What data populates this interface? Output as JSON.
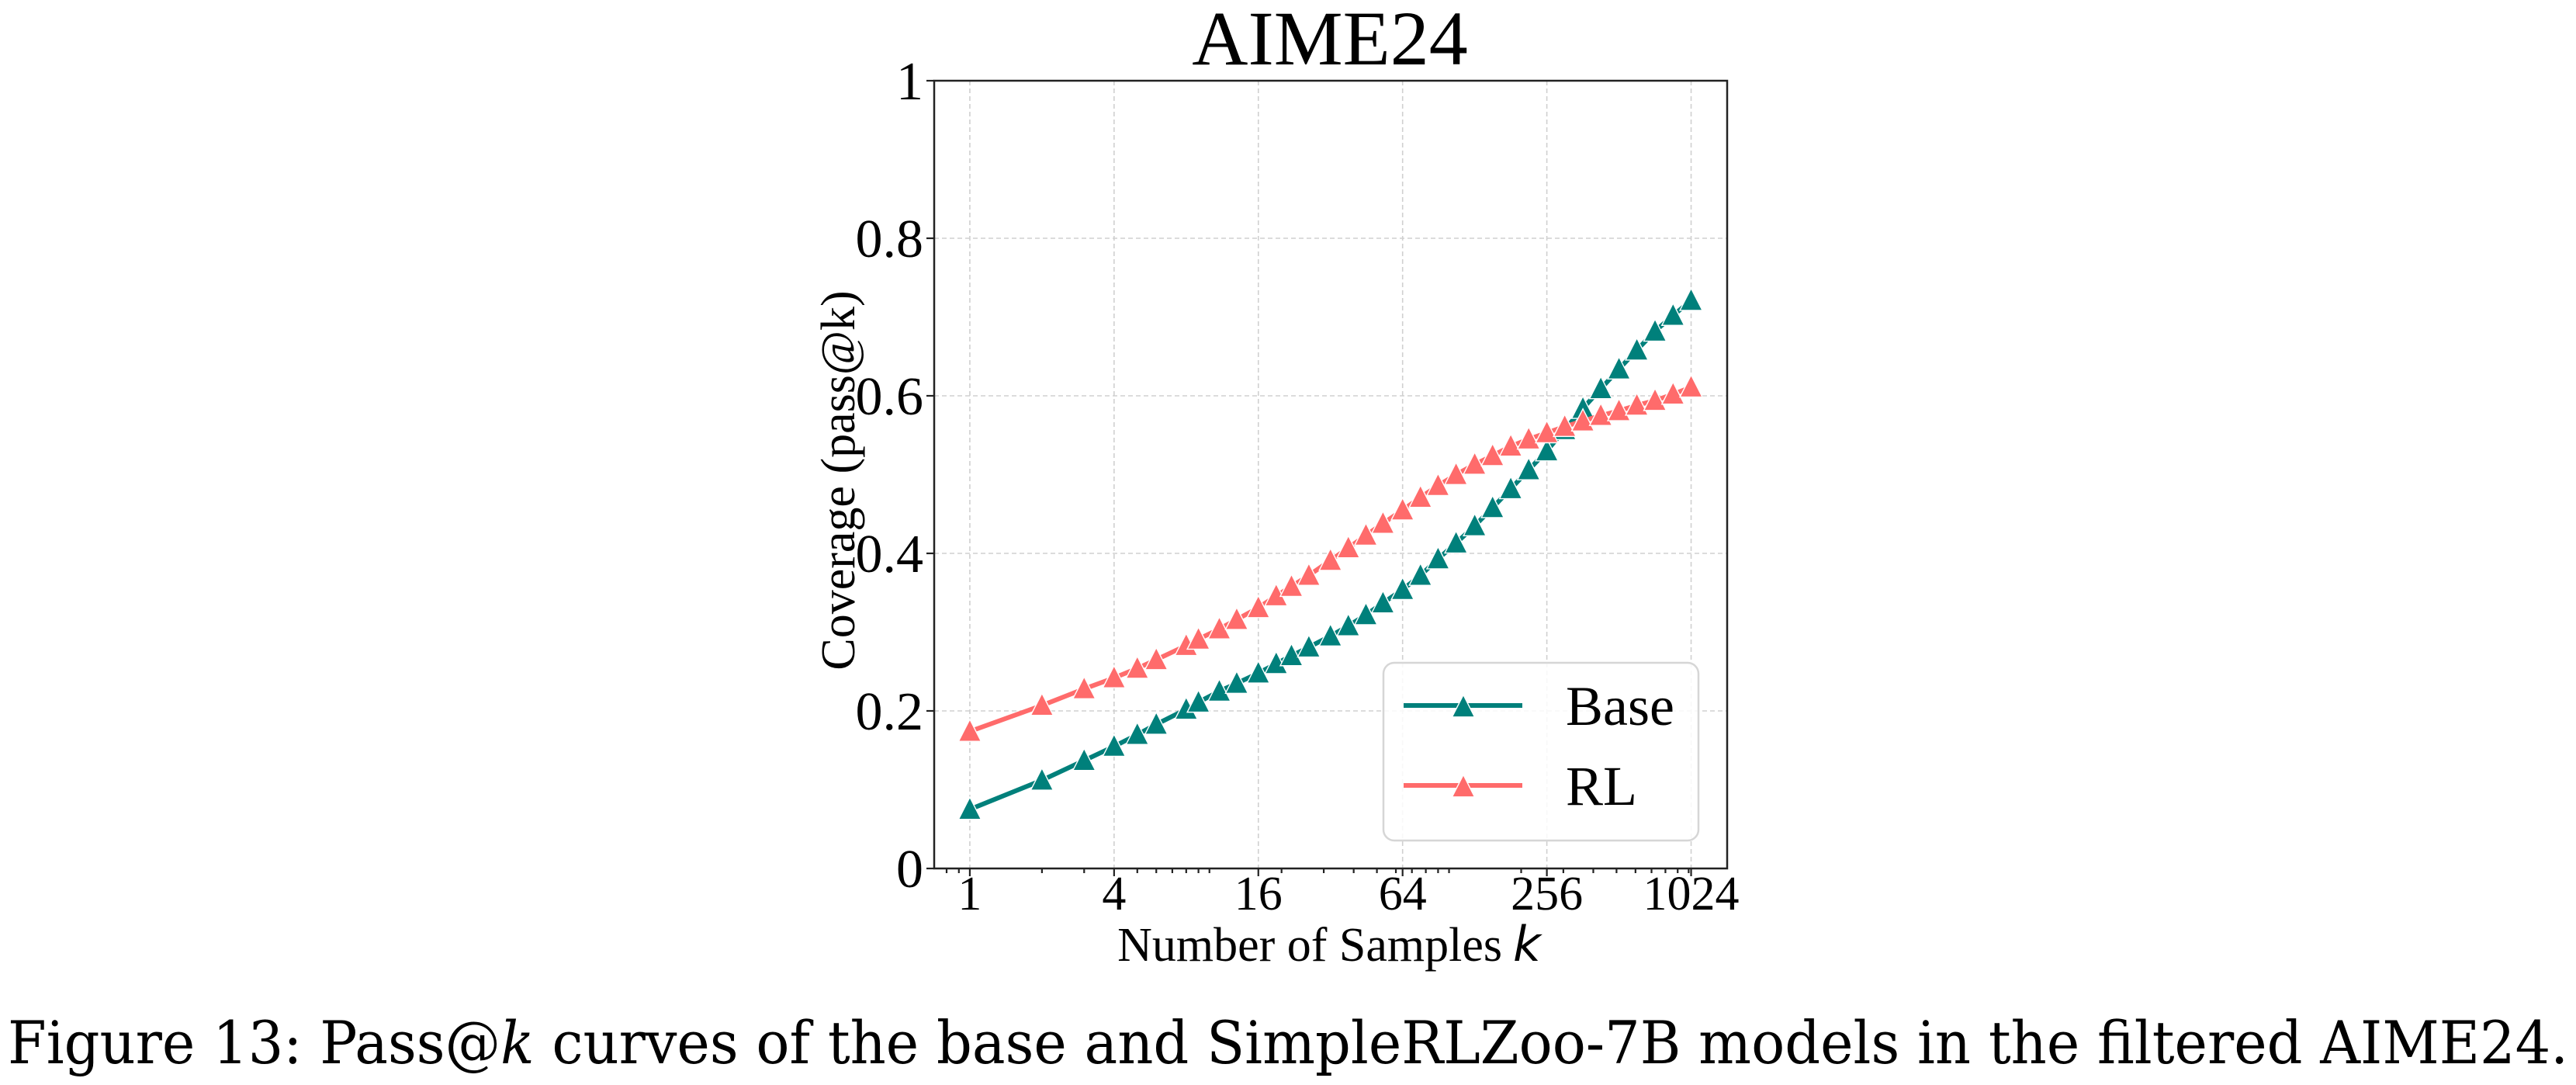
{
  "chart_data": {
    "type": "line",
    "title": "AIME24",
    "xlabel": "Number of Samples",
    "xlabel_var": "k",
    "ylabel": "Coverage (pass@k)",
    "xscale": "log",
    "xscale_base": 4,
    "xlim": [
      0.71,
      1448
    ],
    "ylim": [
      0,
      1
    ],
    "grid": true,
    "x_ticks": [
      1,
      4,
      16,
      64,
      256,
      1024
    ],
    "x_tick_labels": [
      "1",
      "4",
      "16",
      "64",
      "256",
      "1024"
    ],
    "x_minor_ticks": [
      0.8,
      0.9,
      2,
      3,
      5,
      6,
      7,
      8,
      9,
      10,
      20,
      30,
      40,
      50,
      60,
      70,
      80,
      90,
      100,
      200,
      300,
      400,
      500,
      600,
      700,
      800,
      900,
      1000
    ],
    "y_ticks": [
      0,
      0.2,
      0.4,
      0.6,
      0.8,
      1
    ],
    "y_tick_labels": [
      "0",
      "0.2",
      "0.4",
      "0.6",
      "0.8",
      "1"
    ],
    "legend_position": "lower-right",
    "marker": "triangle-up",
    "x": [
      1,
      2,
      3,
      4,
      5,
      6,
      8,
      9,
      11,
      13,
      16,
      19,
      22,
      26,
      32,
      38,
      45,
      53,
      64,
      76,
      90,
      107,
      128,
      152,
      181,
      215,
      256,
      304,
      362,
      430,
      512,
      608,
      724,
      861,
      1024
    ],
    "series": [
      {
        "name": "Base",
        "color": "#00807B",
        "values": [
          0.075,
          0.112,
          0.137,
          0.155,
          0.17,
          0.183,
          0.202,
          0.211,
          0.225,
          0.235,
          0.248,
          0.26,
          0.27,
          0.281,
          0.295,
          0.308,
          0.322,
          0.337,
          0.354,
          0.372,
          0.393,
          0.413,
          0.435,
          0.458,
          0.482,
          0.506,
          0.53,
          0.557,
          0.584,
          0.609,
          0.634,
          0.658,
          0.682,
          0.702,
          0.721
        ]
      },
      {
        "name": "RL",
        "color": "#FF6B6B",
        "values": [
          0.174,
          0.207,
          0.228,
          0.242,
          0.254,
          0.265,
          0.283,
          0.291,
          0.304,
          0.316,
          0.331,
          0.346,
          0.358,
          0.372,
          0.391,
          0.407,
          0.423,
          0.438,
          0.455,
          0.471,
          0.486,
          0.5,
          0.513,
          0.524,
          0.536,
          0.545,
          0.553,
          0.561,
          0.568,
          0.575,
          0.581,
          0.588,
          0.594,
          0.602,
          0.611
        ]
      }
    ]
  },
  "caption": {
    "prefix": "Figure 13: Pass@",
    "var": "k",
    "suffix": " curves of the base and SimpleRLZoo-7B models in the filtered AIME24."
  }
}
